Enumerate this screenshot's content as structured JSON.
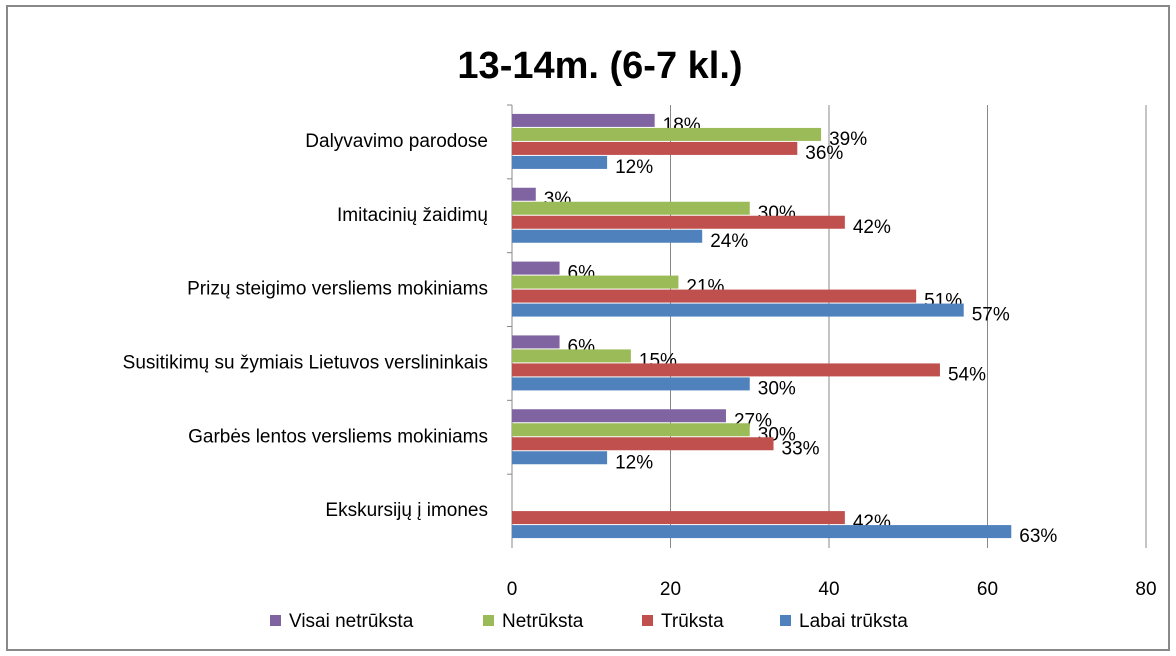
{
  "chart_data": {
    "type": "hbar",
    "title": "13-14m. (6-7 kl.)",
    "categories": [
      "Dalyvavimo parodose",
      "Imitacinių žaidimų",
      "Prizų steigimo versliems mokiniams",
      "Susitikimų su žymiais Lietuvos verslininkais",
      "Garbės lentos versliems mokiniams",
      "Ekskursijų į imones"
    ],
    "series": [
      {
        "name": "Visai netrūksta",
        "color": "#8064a2",
        "values": [
          18,
          3,
          6,
          6,
          27,
          null
        ],
        "value_labels": [
          "18%",
          "3%",
          "6%",
          "6%",
          "27%",
          null
        ]
      },
      {
        "name": "Netrūksta",
        "color": "#9bbb59",
        "values": [
          39,
          30,
          21,
          15,
          30,
          null
        ],
        "value_labels": [
          "39%",
          "30%",
          "21%",
          "15%",
          "30%",
          null
        ]
      },
      {
        "name": "Trūksta",
        "color": "#c0504d",
        "values": [
          36,
          42,
          51,
          54,
          33,
          42
        ],
        "value_labels": [
          "36%",
          "42%",
          "51%",
          "54%",
          "33%",
          "42%"
        ]
      },
      {
        "name": "Labai trūksta",
        "color": "#4f81bd",
        "values": [
          12,
          24,
          57,
          30,
          12,
          63
        ],
        "value_labels": [
          "12%",
          "24%",
          "57%",
          "30%",
          "12%",
          "63%"
        ]
      }
    ],
    "xlim": [
      0,
      80
    ],
    "xticks": [
      0,
      20,
      40,
      60,
      80
    ],
    "grid": true,
    "legend": "bottom"
  }
}
